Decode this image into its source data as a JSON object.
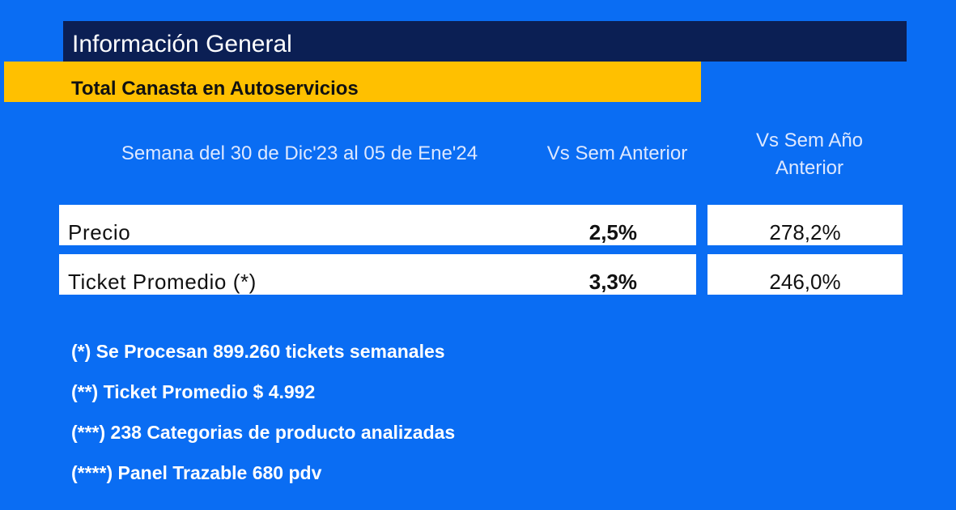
{
  "header": {
    "title": "Información General",
    "subtitle": "Total Canasta en Autoservicios"
  },
  "table": {
    "columns": {
      "week": "Semana del 30 de Dic'23  al 05 de Ene'24",
      "vs_previous": "Vs Sem Anterior",
      "vs_year_line1": "Vs  Sem Año",
      "vs_year_line2": "Anterior"
    },
    "rows": [
      {
        "label": "Precio",
        "vs_previous": "2,5%",
        "vs_year": "278,2%"
      },
      {
        "label": "Ticket Promedio (*)",
        "vs_previous": "3,3%",
        "vs_year": "246,0%"
      }
    ]
  },
  "notes": [
    "(*) Se Procesan 899.260 tickets semanales",
    "(**) Ticket Promedio $ 4.992",
    "(***) 238 Categorias de producto analizadas",
    "(****) Panel Trazable 680 pdv"
  ],
  "colors": {
    "background": "#0a6df3",
    "title_bar": "#0b1f54",
    "subtitle_bar": "#ffc000",
    "row_background": "#ffffff"
  }
}
